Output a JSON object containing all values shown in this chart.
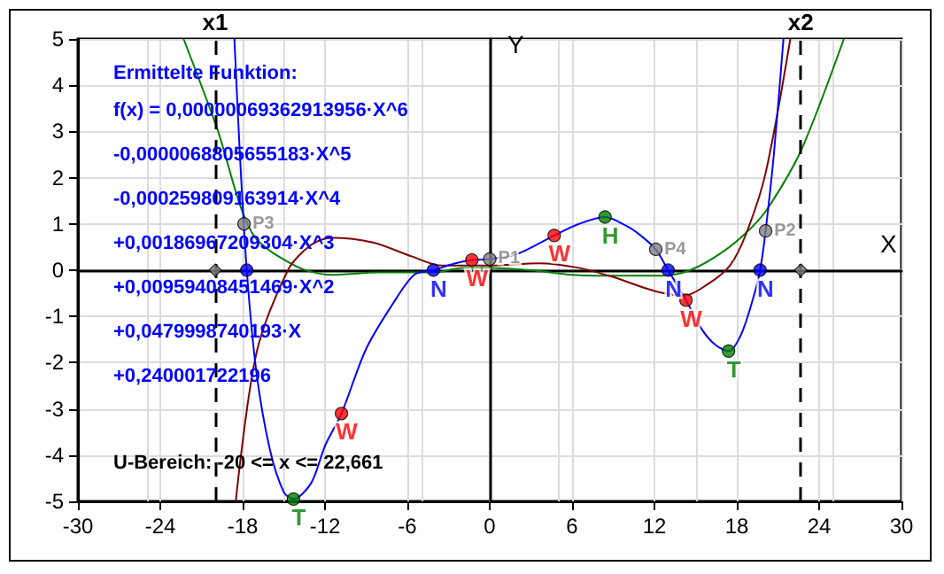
{
  "chart_data": {
    "type": "line",
    "xlabel": "X",
    "ylabel": "Y",
    "xlim": [
      -30,
      30
    ],
    "ylim": [
      -5,
      5
    ],
    "xticks": [
      -30,
      -24,
      -18,
      -12,
      -6,
      0,
      6,
      12,
      18,
      24,
      30
    ],
    "yticks": [
      -5,
      -4,
      -3,
      -2,
      -1,
      0,
      1,
      2,
      3,
      4,
      5
    ],
    "grid": true,
    "annotations": [
      "Ermittelte Funktion:",
      "f(x) = 0,00000069362913956·X^6",
      "-0,0000068805655183·X^5",
      "-0,000259809163914·X^4",
      "+0,00186967209304·X^3",
      "+0,00959408451469·X^2",
      "+0,0479998740193·X",
      "+0,240001722196",
      "U-Bereich: -20 <= x <= 22,661"
    ],
    "ref_lines": [
      {
        "axis": "x",
        "value": -20,
        "label": "x1",
        "color": "#000000",
        "line_style": "dashed"
      },
      {
        "axis": "x",
        "value": 22.661,
        "label": "x2",
        "color": "#000000",
        "line_style": "dashed"
      }
    ],
    "series": [
      {
        "marker": "none",
        "color": "#008000",
        "x": [
          -22.3,
          -19.9,
          -17.3,
          -14.2,
          -11.6,
          -8,
          -4.1,
          -2,
          0,
          3,
          6,
          9,
          12.5,
          14.6,
          17,
          19,
          20.4,
          22.7,
          25.8
        ],
        "values": [
          5,
          3.1,
          0.8,
          0.1,
          -0.1,
          -0.05,
          -0.05,
          0.05,
          0.05,
          0,
          -0.1,
          -0.12,
          -0.12,
          0,
          0.4,
          0.9,
          1.4,
          2.6,
          5
        ]
      },
      {
        "marker": "none",
        "color": "#800000",
        "x": [
          -18.5,
          -17,
          -14.7,
          -13,
          -11.5,
          -8.5,
          -5.7,
          -3.5,
          0,
          3.6,
          6.5,
          9,
          12,
          14.2,
          15.9,
          17.5,
          18.7,
          20.1,
          21.9
        ],
        "values": [
          -5,
          -1.8,
          0,
          0.55,
          0.7,
          0.6,
          0.3,
          0.1,
          0.1,
          0.15,
          0.05,
          -0.15,
          -0.45,
          -0.55,
          -0.3,
          0.1,
          0.8,
          2.1,
          5
        ]
      },
      {
        "marker": "none",
        "color": "#0000ff",
        "x": [
          -18.6,
          -18.2,
          -17.7,
          -17,
          -16,
          -15,
          -14.3,
          -13,
          -12,
          -10.8,
          -9,
          -7,
          -5.5,
          -4.1,
          -2.5,
          -1.3,
          0,
          2,
          4.7,
          6.5,
          8.4,
          10,
          11,
          12.1,
          13,
          14.3,
          15.5,
          16.5,
          17.4,
          18.3,
          19.2,
          19.7,
          20.1,
          20.7,
          21.4
        ],
        "values": [
          5,
          2.5,
          0,
          -2.2,
          -3.9,
          -4.8,
          -4.95,
          -4.6,
          -3.8,
          -3.1,
          -1.7,
          -0.7,
          -0.1,
          0,
          0.15,
          0.22,
          0.24,
          0.35,
          0.75,
          1,
          1.15,
          0.95,
          0.75,
          0.45,
          0,
          -0.65,
          -1.3,
          -1.63,
          -1.75,
          -1.4,
          -0.6,
          0,
          0.85,
          2.5,
          5
        ]
      },
      {
        "type": "scatter",
        "marker": "diamond",
        "color": "#808080",
        "x": [
          -20,
          22.661
        ],
        "values": [
          0,
          0
        ]
      },
      {
        "type": "scatter",
        "marker": "circle",
        "color": "#0000ff",
        "x": [
          -17.7,
          -4.1,
          13,
          19.7
        ],
        "values": [
          0,
          0,
          0,
          0
        ],
        "value_labels": [
          null,
          "N",
          "N",
          "N"
        ]
      },
      {
        "type": "scatter",
        "marker": "circle",
        "color": "#ff0000",
        "x": [
          -10.8,
          -1.3,
          4.7,
          14.3
        ],
        "values": [
          -3.1,
          0.22,
          0.75,
          -0.65
        ],
        "value_labels": [
          "W",
          "W",
          "W",
          "W"
        ]
      },
      {
        "type": "scatter",
        "marker": "circle",
        "color": "#008000",
        "x": [
          -14.3,
          8.4,
          17.4
        ],
        "values": [
          -4.95,
          1.15,
          -1.75
        ],
        "value_labels": [
          "T",
          "H",
          "T"
        ]
      },
      {
        "type": "scatter",
        "marker": "circle",
        "color": "#808080",
        "x": [
          0,
          20.1,
          -17.9,
          12.1
        ],
        "values": [
          0.24,
          0.85,
          1,
          0.45
        ],
        "value_labels": [
          "P1",
          "P2",
          "P3",
          "P4"
        ]
      }
    ]
  }
}
